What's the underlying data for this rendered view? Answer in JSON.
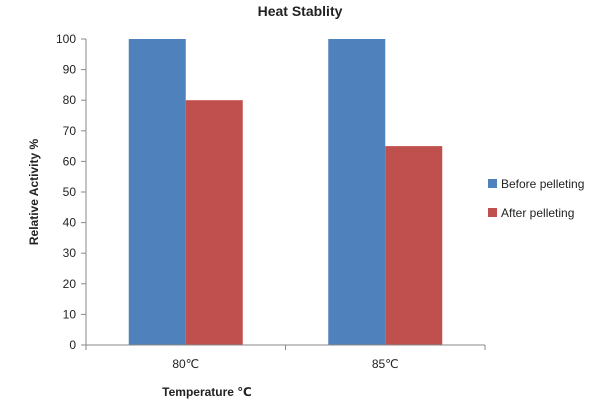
{
  "chart_data": {
    "type": "bar",
    "title": "Heat Stablity",
    "xlabel": "Temperature ℃",
    "ylabel": "Relative Activity %",
    "categories": [
      "80℃",
      "85℃"
    ],
    "series": [
      {
        "name": "Before pelleting",
        "color": "#4f81bd",
        "values": [
          100,
          100
        ]
      },
      {
        "name": "After pelleting",
        "color": "#c0504d",
        "values": [
          80,
          65
        ]
      }
    ],
    "ylim": [
      0,
      100
    ],
    "yticks": [
      0,
      10,
      20,
      30,
      40,
      50,
      60,
      70,
      80,
      90,
      100
    ],
    "grid": false,
    "legend": "right"
  }
}
